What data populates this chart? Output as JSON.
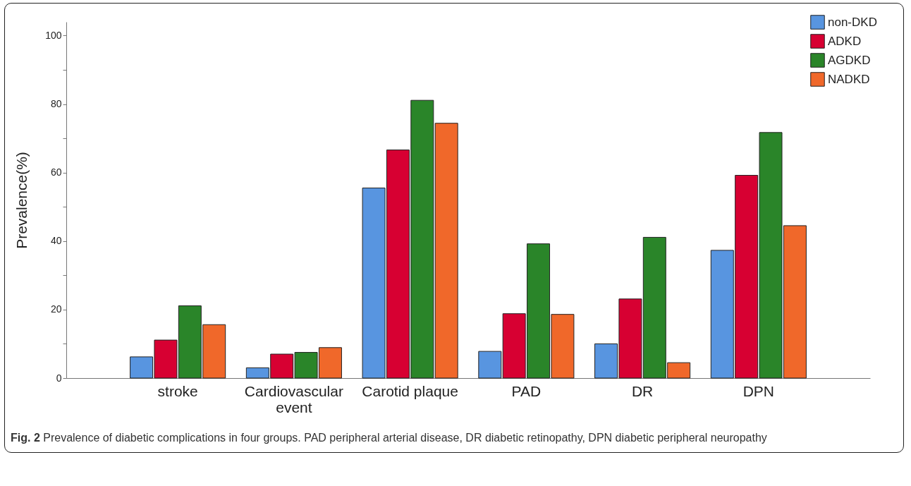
{
  "chart_data": {
    "type": "bar",
    "ylabel": "Prevalence(%)",
    "categories": [
      "stroke",
      "Cardiovascular event",
      "Carotid plaque",
      "PAD",
      "DR",
      "DPN"
    ],
    "series": [
      {
        "name": "non-DKD",
        "color": "#5895e0",
        "values": [
          6.2,
          3.0,
          55.5,
          7.8,
          10.0,
          37.3
        ]
      },
      {
        "name": "ADKD",
        "color": "#d70032",
        "values": [
          11.1,
          7.0,
          66.6,
          18.8,
          23.1,
          59.2
        ]
      },
      {
        "name": "AGDKD",
        "color": "#2a8529",
        "values": [
          21.1,
          7.5,
          81.1,
          39.2,
          41.1,
          71.7
        ]
      },
      {
        "name": "NADKD",
        "color": "#f0682a",
        "values": [
          15.6,
          8.9,
          74.4,
          18.6,
          4.5,
          44.5
        ]
      }
    ],
    "ylim": [
      0,
      104
    ],
    "yticks": [
      0,
      {
        "value": 10,
        "label": null
      },
      20,
      {
        "value": 30,
        "label": null
      },
      40,
      {
        "value": 50,
        "label": null
      },
      60,
      {
        "value": 70,
        "label": null
      },
      80,
      {
        "value": 90,
        "label": null
      },
      100
    ],
    "grid": false,
    "legend": "top right",
    "annotations": [
      "Fig. 2 Prevalence of diabetic complications in four groups. PAD peripheral arterial disease, DR diabetic retinopathy, DPN diabetic peripheral neuropathy"
    ]
  }
}
